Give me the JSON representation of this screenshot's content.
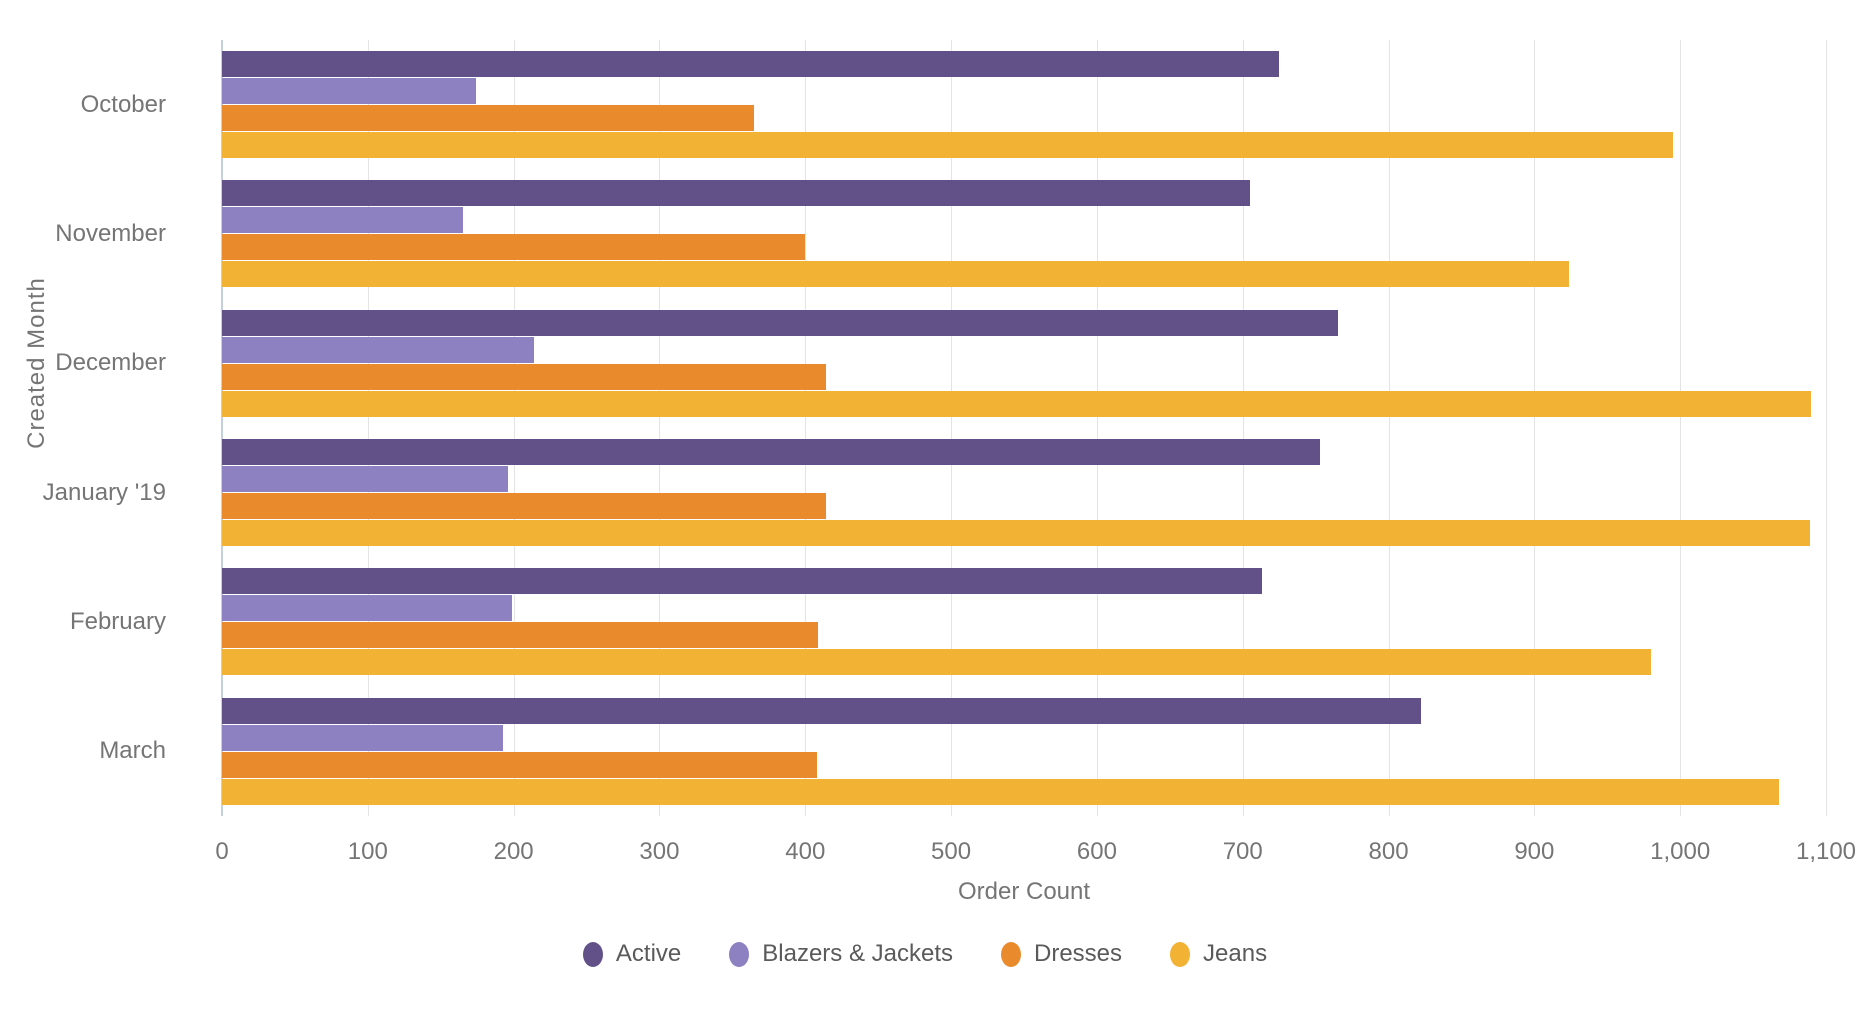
{
  "chart_data": {
    "type": "bar",
    "orientation": "horizontal",
    "xlabel": "Order Count",
    "ylabel": "Created Month",
    "xlim": [
      0,
      1100
    ],
    "x_tick_step": 100,
    "x_ticks": [
      "0",
      "100",
      "200",
      "300",
      "400",
      "500",
      "600",
      "700",
      "800",
      "900",
      "1,000",
      "1,100"
    ],
    "grid": true,
    "legend_position": "bottom",
    "categories": [
      "October",
      "November",
      "December",
      "January '19",
      "February",
      "March"
    ],
    "series": [
      {
        "name": "Active",
        "color": "#625189",
        "values": [
          725,
          705,
          765,
          753,
          713,
          822
        ]
      },
      {
        "name": "Blazers & Jackets",
        "color": "#8d81c1",
        "values": [
          174,
          165,
          214,
          196,
          199,
          193
        ]
      },
      {
        "name": "Dresses",
        "color": "#e98b2d",
        "values": [
          365,
          400,
          414,
          414,
          409,
          408
        ]
      },
      {
        "name": "Jeans",
        "color": "#f2b233",
        "values": [
          995,
          924,
          1090,
          1089,
          980,
          1068
        ]
      }
    ],
    "colors": {
      "axis_line": "#c3d0e2",
      "gridline": "#e4e4e4",
      "axis_text": "#757575",
      "legend_text": "#5a5a5a",
      "background": "#ffffff"
    }
  }
}
